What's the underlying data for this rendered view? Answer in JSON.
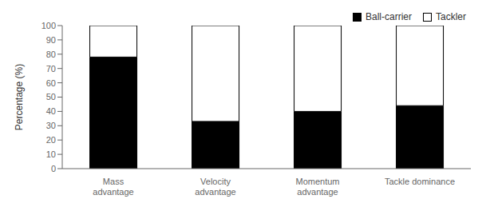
{
  "chart_data": {
    "type": "bar",
    "stacked": true,
    "categories": [
      "Mass\nadvantage",
      "Velocity\nadvantage",
      "Momentum\nadvantage",
      "Tackle dominance"
    ],
    "series": [
      {
        "name": "Ball-carrier",
        "color": "#000000",
        "values": [
          78,
          33,
          40,
          44
        ]
      },
      {
        "name": "Tackler",
        "color": "#ffffff",
        "values": [
          22,
          67,
          60,
          56
        ]
      }
    ],
    "ylabel": "Percentage (%)",
    "ylim": [
      0,
      100
    ],
    "yticks": [
      0,
      10,
      20,
      30,
      40,
      50,
      60,
      70,
      80,
      90,
      100
    ],
    "legend": "upper right",
    "grid": false
  }
}
